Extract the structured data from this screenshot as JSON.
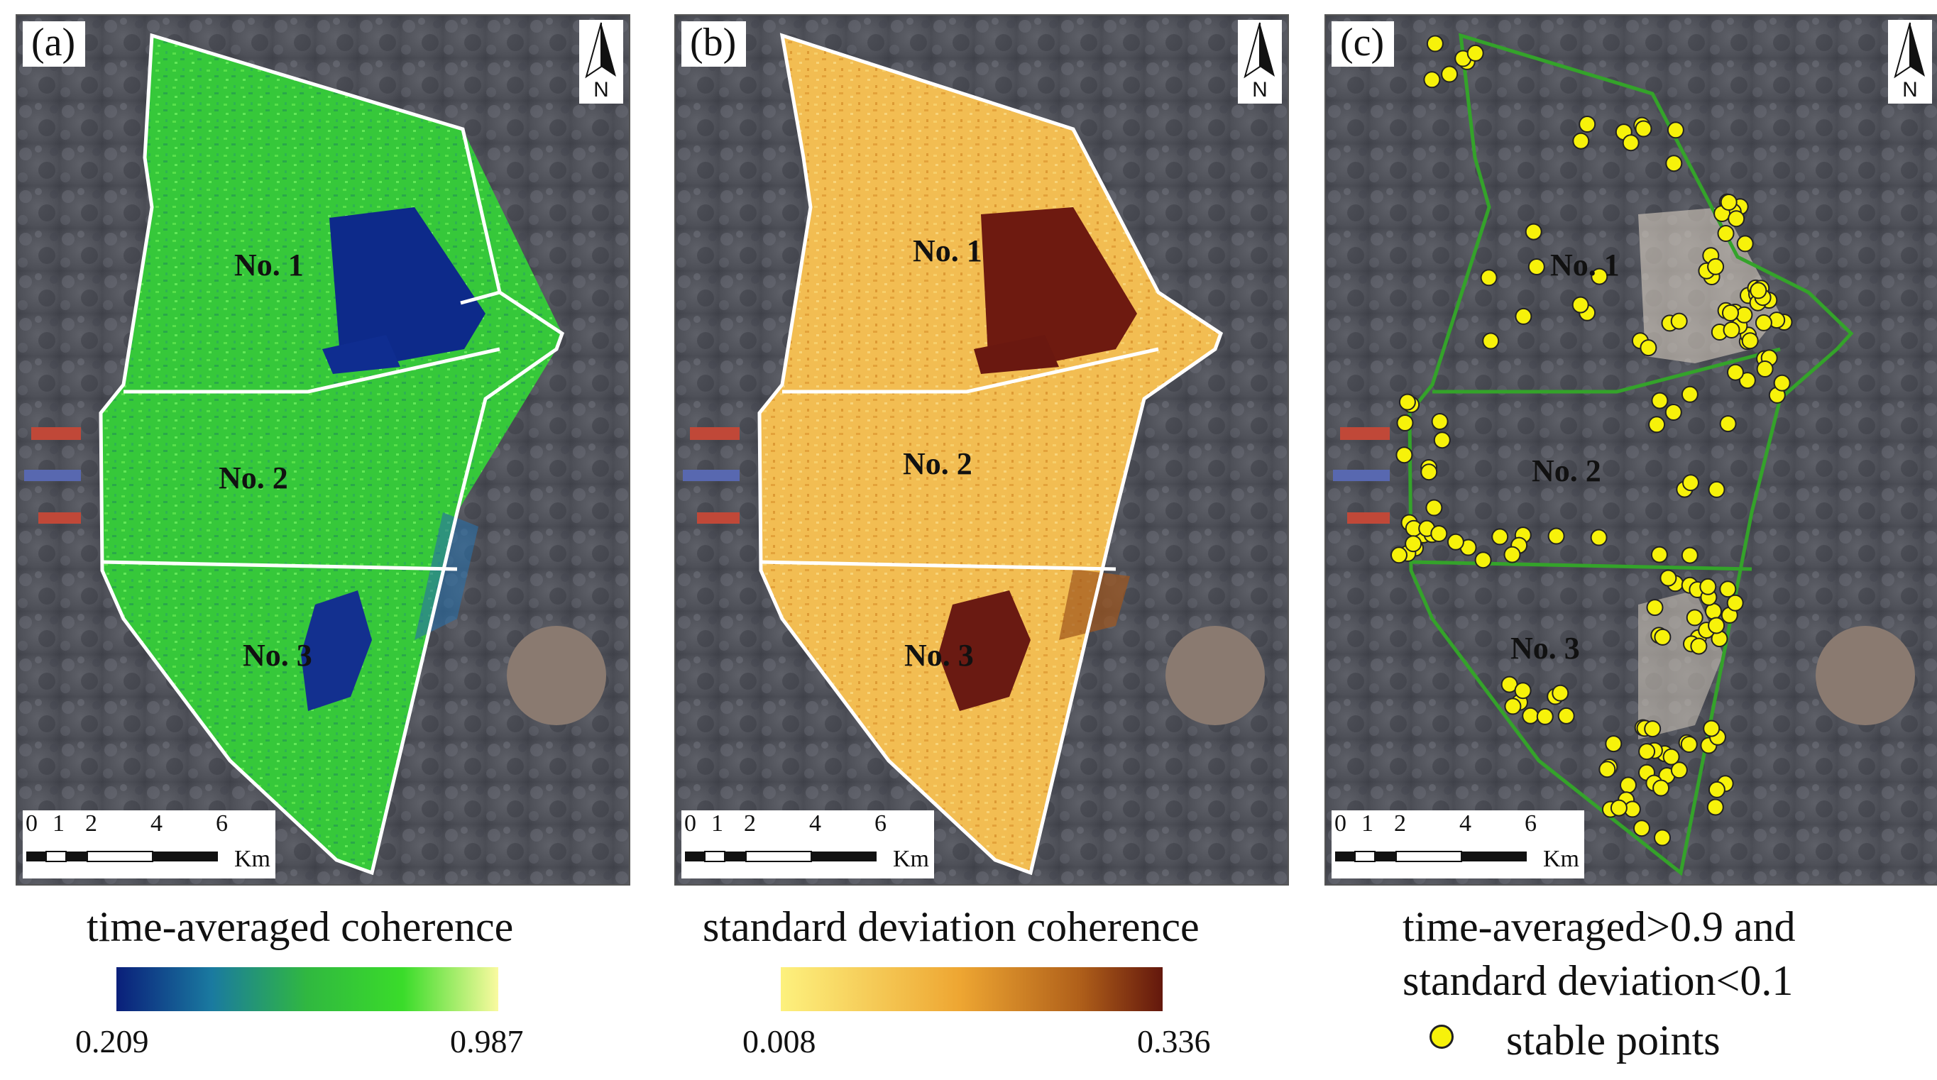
{
  "colors": {
    "coherence_low": "#0a1f7a",
    "coherence_mid": "#2fd02a",
    "coherence_high": "#fafaa0",
    "std_low": "#fdee84",
    "std_mid": "#e8a030",
    "std_high": "#5a0c0c",
    "boundary_ab": "#ffffff",
    "boundary_c": "#34a32a",
    "stable_point": "#f7f20a"
  },
  "panels": [
    {
      "label": "(a)",
      "north": "N",
      "regions": [
        "No. 1",
        "No. 2",
        "No. 3"
      ],
      "scale": {
        "ticks": [
          "0",
          "1",
          "2",
          "4",
          "6"
        ],
        "unit": "Km"
      },
      "title": "time-averaged coherence",
      "colorbar": {
        "min": "0.209",
        "max": "0.987"
      }
    },
    {
      "label": "(b)",
      "north": "N",
      "regions": [
        "No. 1",
        "No. 2",
        "No. 3"
      ],
      "scale": {
        "ticks": [
          "0",
          "1",
          "2",
          "4",
          "6"
        ],
        "unit": "Km"
      },
      "title": "standard deviation coherence",
      "colorbar": {
        "min": "0.008",
        "max": "0.336"
      }
    },
    {
      "label": "(c)",
      "north": "N",
      "regions": [
        "No. 1",
        "No. 2",
        "No. 3"
      ],
      "scale": {
        "ticks": [
          "0",
          "1",
          "2",
          "4",
          "6"
        ],
        "unit": "Km"
      },
      "title_line1": "time-averaged>0.9 and",
      "title_line2": "standard deviation<0.1",
      "legend": "stable points"
    }
  ]
}
